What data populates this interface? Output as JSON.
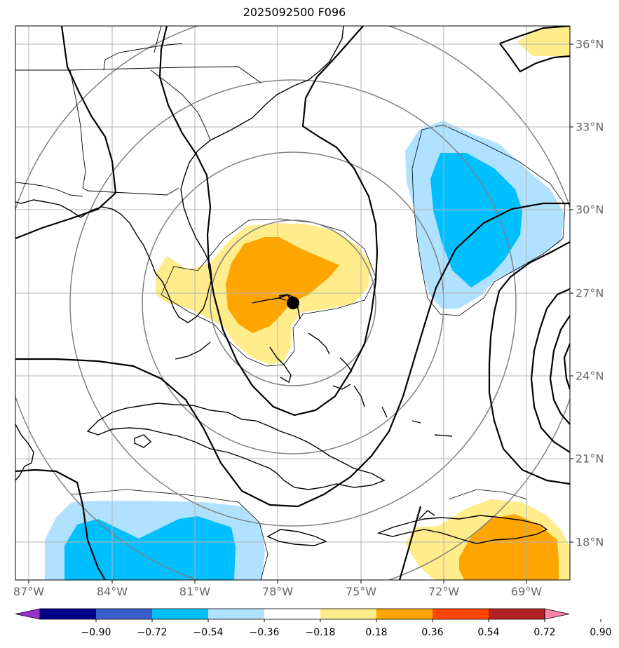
{
  "title": "2025092500 F096",
  "lon_labels": [
    "87°W",
    "84°W",
    "81°W",
    "78°W",
    "75°W",
    "72°W",
    "69°W"
  ],
  "lat_labels": [
    "36°N",
    "33°N",
    "30°N",
    "27°N",
    "24°N",
    "21°N",
    "18°N"
  ],
  "colorbar": {
    "ticks": [
      "−0.90",
      "−0.72",
      "−0.54",
      "−0.36",
      "−0.18",
      "0.18",
      "0.36",
      "0.54",
      "0.72",
      "0.90"
    ],
    "colors": [
      "#9932cc",
      "#00008b",
      "#3a5fcd",
      "#00bfff",
      "#b0e2ff",
      "#ffffff",
      "#ffec8b",
      "#ffa500",
      "#ff4500",
      "#b22222",
      "#ff82ab"
    ]
  },
  "center_marker": {
    "lat": 26.6,
    "lon": -77.4
  }
}
